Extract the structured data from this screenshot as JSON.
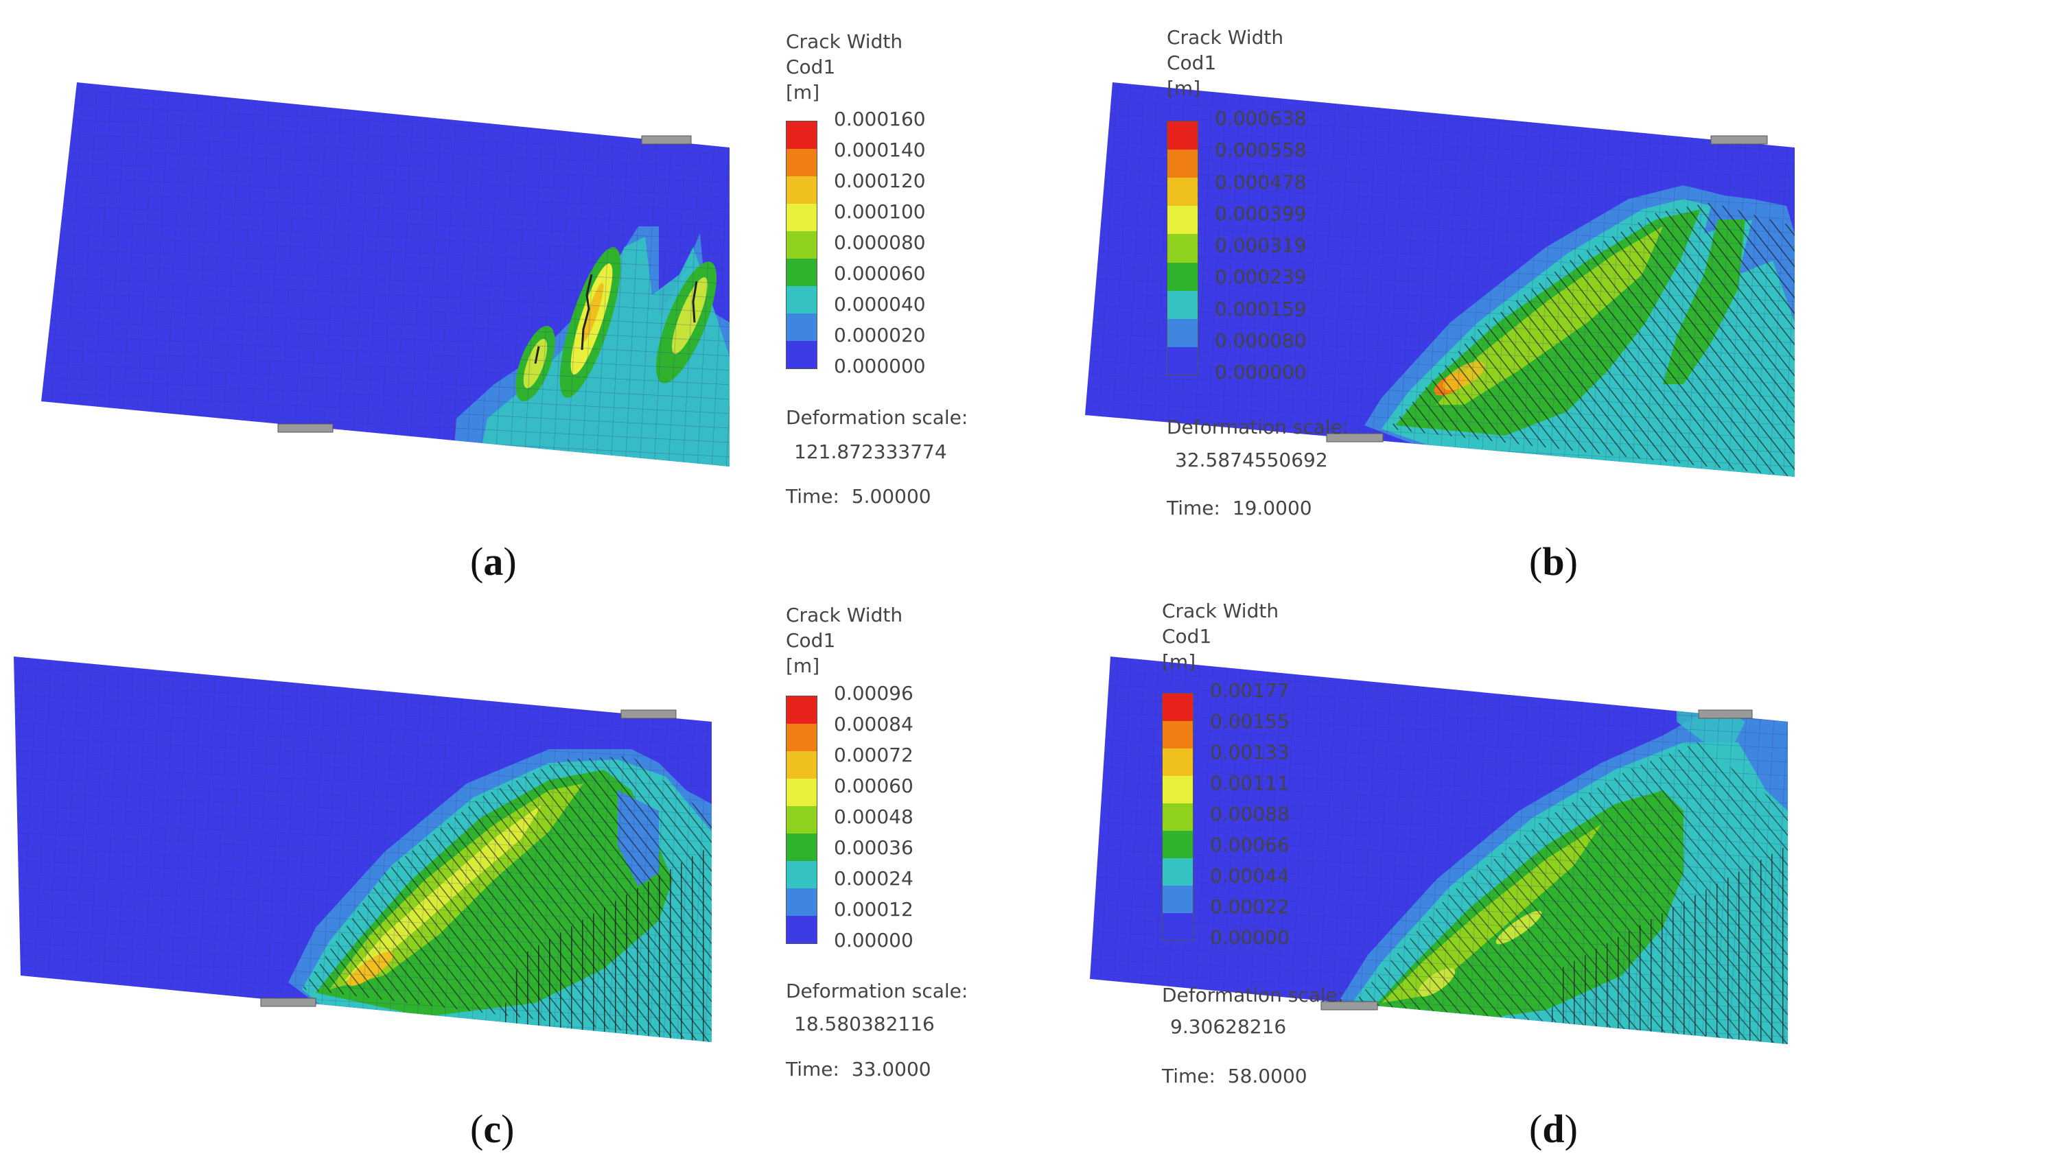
{
  "legend_title": "Crack Width",
  "legend_subtitle": "Cod1",
  "legend_unit": "[m]",
  "deformation_label": "Deformation scale:",
  "time_label": "Time:",
  "colors": [
    "#e8231c",
    "#ef7f14",
    "#f0c01e",
    "#e8f03c",
    "#8ed21e",
    "#2fb32f",
    "#35c2c2",
    "#3f86e0",
    "#3d3be6"
  ],
  "panels": [
    {
      "id": "a",
      "caption": "a",
      "ticks": [
        "0.000160",
        "0.000140",
        "0.000120",
        "0.000100",
        "0.000080",
        "0.000060",
        "0.000040",
        "0.000020",
        "0.000000"
      ],
      "deformation_scale": "121.872333774",
      "time": "5.00000"
    },
    {
      "id": "b",
      "caption": "b",
      "ticks": [
        "0.000638",
        "0.000558",
        "0.000478",
        "0.000399",
        "0.000319",
        "0.000239",
        "0.000159",
        "0.000080",
        "0.000000"
      ],
      "deformation_scale": "32.5874550692",
      "time": "19.0000"
    },
    {
      "id": "c",
      "caption": "c",
      "ticks": [
        "0.00096",
        "0.00084",
        "0.00072",
        "0.00060",
        "0.00048",
        "0.00036",
        "0.00024",
        "0.00012",
        "0.00000"
      ],
      "deformation_scale": "18.580382116",
      "time": "33.0000"
    },
    {
      "id": "d",
      "caption": "d",
      "ticks": [
        "0.00177",
        "0.00155",
        "0.00133",
        "0.00111",
        "0.00088",
        "0.00066",
        "0.00044",
        "0.00022",
        "0.00000"
      ],
      "deformation_scale": "9.30628216",
      "time": "58.0000"
    }
  ]
}
